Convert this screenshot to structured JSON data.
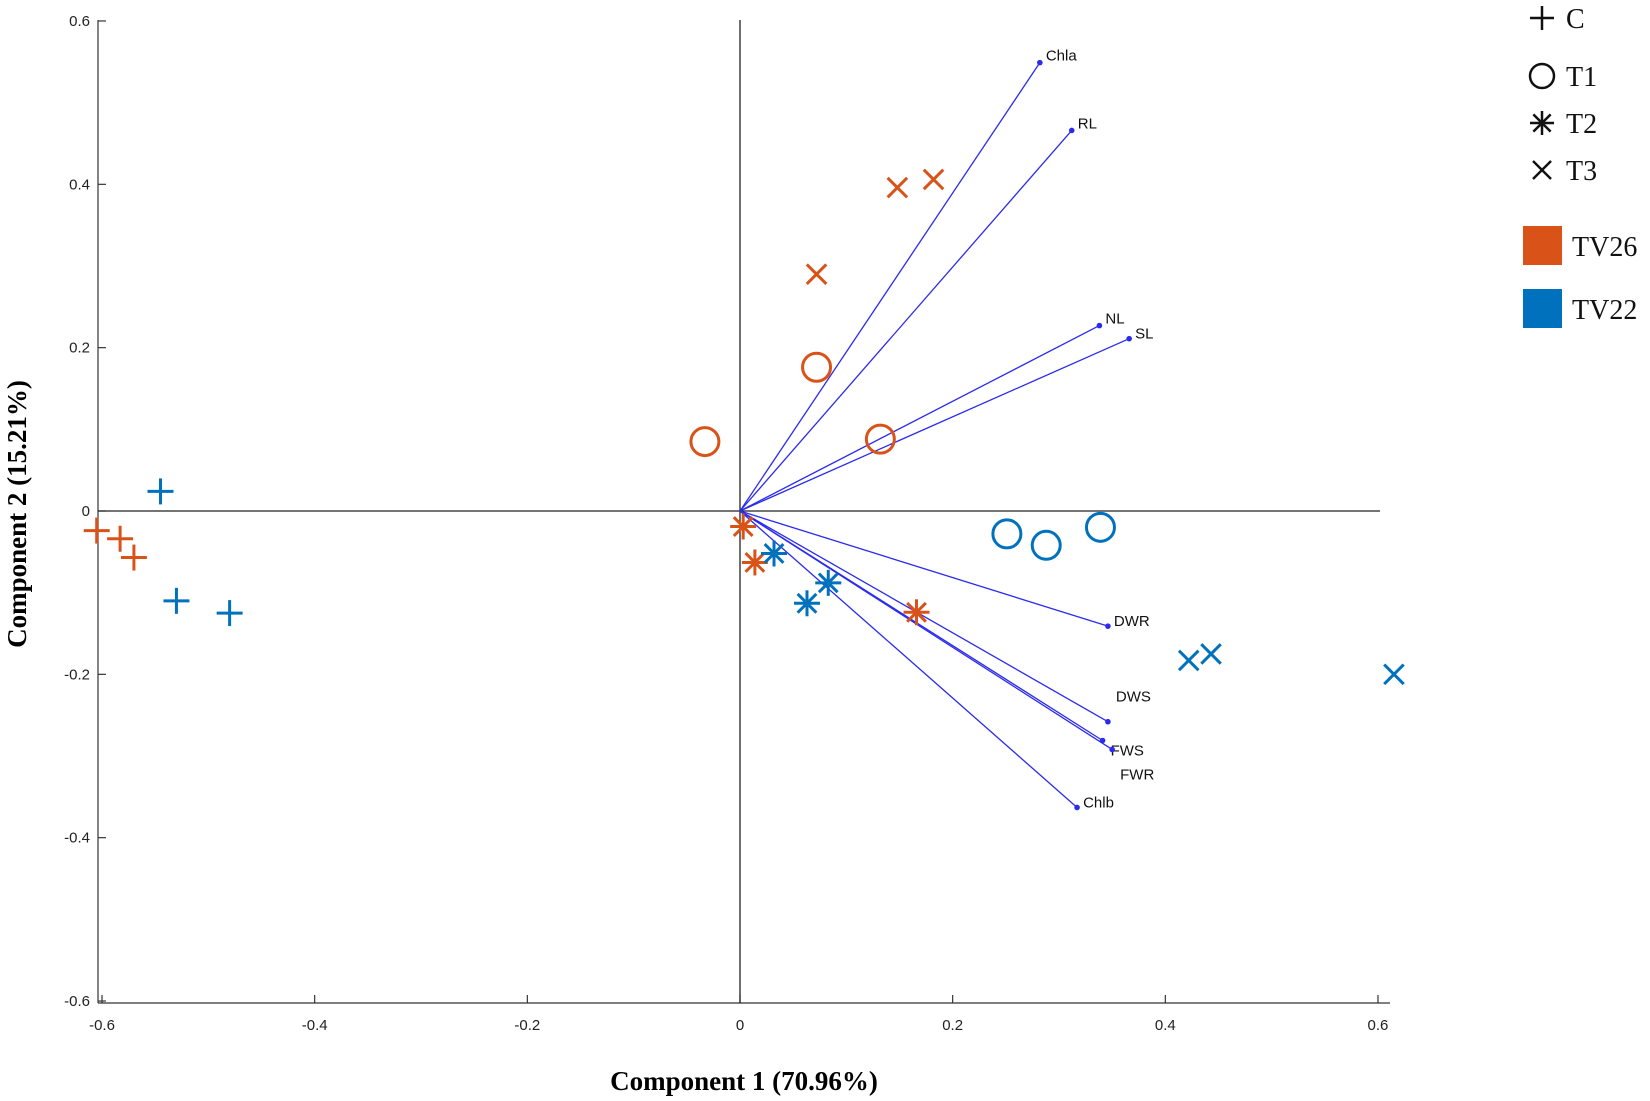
{
  "chart_data": {
    "type": "scatter",
    "subtype": "biplot",
    "title": "",
    "xlabel": "Component 1 (70.96%)",
    "ylabel": "Component 2 (15.21%)",
    "xlim": [
      -0.6,
      0.6
    ],
    "ylim": [
      -0.6,
      0.6
    ],
    "xticks": [
      -0.6,
      -0.4,
      -0.2,
      0,
      0.2,
      0.4,
      0.6
    ],
    "yticks": [
      -0.6,
      -0.4,
      -0.2,
      0,
      0.2,
      0.4,
      0.6
    ],
    "xtick_labels": [
      "-0.6",
      "-0.4",
      "-0.2",
      "0",
      "0.2",
      "0.4",
      "0.6"
    ],
    "ytick_labels": [
      "-0.6",
      "-0.4",
      "-0.2",
      "0",
      "0.2",
      "0.4",
      "0.6"
    ],
    "vector_color": "#2b2bf0",
    "vectors": [
      {
        "name": "Chla",
        "x": 0.282,
        "y": 0.549
      },
      {
        "name": "RL",
        "x": 0.312,
        "y": 0.466
      },
      {
        "name": "NL",
        "x": 0.338,
        "y": 0.227
      },
      {
        "name": "SL",
        "x": 0.366,
        "y": 0.211
      },
      {
        "name": "DWR",
        "x": 0.346,
        "y": -0.141
      },
      {
        "name": "DWS",
        "x": 0.346,
        "y": -0.258
      },
      {
        "name": "FWS",
        "x": 0.341,
        "y": -0.281
      },
      {
        "name": "FWR",
        "x": 0.35,
        "y": -0.292
      },
      {
        "name": "Chlb",
        "x": 0.317,
        "y": -0.363
      }
    ],
    "groups": [
      {
        "name": "TV26",
        "color": "#d95319"
      },
      {
        "name": "TV22",
        "color": "#0072bd"
      }
    ],
    "treatments": [
      {
        "name": "C",
        "marker": "plus"
      },
      {
        "name": "T1",
        "marker": "circle"
      },
      {
        "name": "T2",
        "marker": "asterisk"
      },
      {
        "name": "T3",
        "marker": "cross"
      }
    ],
    "points": [
      {
        "group": "TV26",
        "treatment": "C",
        "x": -0.605,
        "y": -0.024
      },
      {
        "group": "TV26",
        "treatment": "C",
        "x": -0.583,
        "y": -0.034
      },
      {
        "group": "TV26",
        "treatment": "C",
        "x": -0.57,
        "y": -0.057
      },
      {
        "group": "TV22",
        "treatment": "C",
        "x": -0.545,
        "y": 0.024
      },
      {
        "group": "TV22",
        "treatment": "C",
        "x": -0.53,
        "y": -0.11
      },
      {
        "group": "TV22",
        "treatment": "C",
        "x": -0.48,
        "y": -0.125
      },
      {
        "group": "TV26",
        "treatment": "T1",
        "x": -0.033,
        "y": 0.085
      },
      {
        "group": "TV26",
        "treatment": "T1",
        "x": 0.072,
        "y": 0.176
      },
      {
        "group": "TV26",
        "treatment": "T1",
        "x": 0.132,
        "y": 0.088
      },
      {
        "group": "TV22",
        "treatment": "T1",
        "x": 0.251,
        "y": -0.028
      },
      {
        "group": "TV22",
        "treatment": "T1",
        "x": 0.288,
        "y": -0.042
      },
      {
        "group": "TV22",
        "treatment": "T1",
        "x": 0.339,
        "y": -0.02
      },
      {
        "group": "TV26",
        "treatment": "T2",
        "x": 0.003,
        "y": -0.019
      },
      {
        "group": "TV26",
        "treatment": "T2",
        "x": 0.014,
        "y": -0.063
      },
      {
        "group": "TV26",
        "treatment": "T2",
        "x": 0.166,
        "y": -0.124
      },
      {
        "group": "TV22",
        "treatment": "T2",
        "x": 0.032,
        "y": -0.052
      },
      {
        "group": "TV22",
        "treatment": "T2",
        "x": 0.063,
        "y": -0.113
      },
      {
        "group": "TV22",
        "treatment": "T2",
        "x": 0.083,
        "y": -0.088
      },
      {
        "group": "TV26",
        "treatment": "T3",
        "x": 0.072,
        "y": 0.29
      },
      {
        "group": "TV26",
        "treatment": "T3",
        "x": 0.148,
        "y": 0.396
      },
      {
        "group": "TV26",
        "treatment": "T3",
        "x": 0.182,
        "y": 0.406
      },
      {
        "group": "TV22",
        "treatment": "T3",
        "x": 0.422,
        "y": -0.183
      },
      {
        "group": "TV22",
        "treatment": "T3",
        "x": 0.443,
        "y": -0.175
      },
      {
        "group": "TV22",
        "treatment": "T3",
        "x": 0.615,
        "y": -0.2
      }
    ],
    "legend_position": "top-right, outside plot"
  }
}
